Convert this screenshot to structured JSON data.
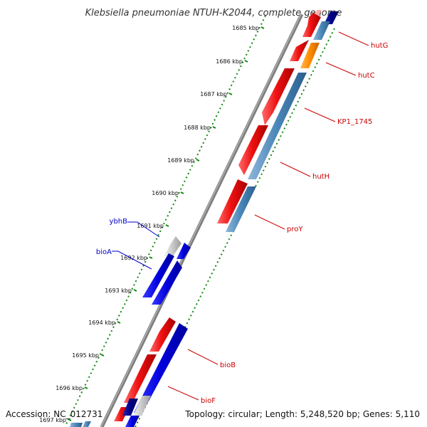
{
  "title": "Klebsiella pneumoniae NTUH-K2044, complete genome",
  "footer": {
    "accession": "Accession: NC_012731",
    "summary": "Topology: circular; Length: 5,248,520 bp; Genes: 5,110"
  },
  "ticks": [
    {
      "label": "1685 kbp"
    },
    {
      "label": "1686 kbp"
    },
    {
      "label": "1687 kbp"
    },
    {
      "label": "1688 kbp"
    },
    {
      "label": "1689 kbp"
    },
    {
      "label": "1690 kbp"
    },
    {
      "label": "1691 kbp"
    },
    {
      "label": "1692 kbp"
    },
    {
      "label": "1693 kbp"
    },
    {
      "label": "1694 kbp"
    },
    {
      "label": "1695 kbp"
    },
    {
      "label": "1696 kbp"
    },
    {
      "label": "1697 kbp"
    }
  ],
  "gene_labels": [
    {
      "name": "hutG",
      "color": "#cc0000"
    },
    {
      "name": "hutC",
      "color": "#cc0000"
    },
    {
      "name": "KP1_1745",
      "color": "#cc0000"
    },
    {
      "name": "hutH",
      "color": "#cc0000"
    },
    {
      "name": "proY",
      "color": "#cc0000"
    },
    {
      "name": "ybhB",
      "color": "#0000cc"
    },
    {
      "name": "bioA",
      "color": "#0000cc"
    },
    {
      "name": "bioB",
      "color": "#cc0000"
    },
    {
      "name": "bioF",
      "color": "#cc0000"
    }
  ],
  "colors": {
    "backbone": "#8c8c8c",
    "gene_red": "#e01010",
    "gene_steel": "#4a86b8",
    "gene_orange": "#ff8c00",
    "gene_blue": "#0000dd",
    "gene_navy": "#000088",
    "gene_gray": "#c8c8c8",
    "tick_green": "#118811"
  }
}
